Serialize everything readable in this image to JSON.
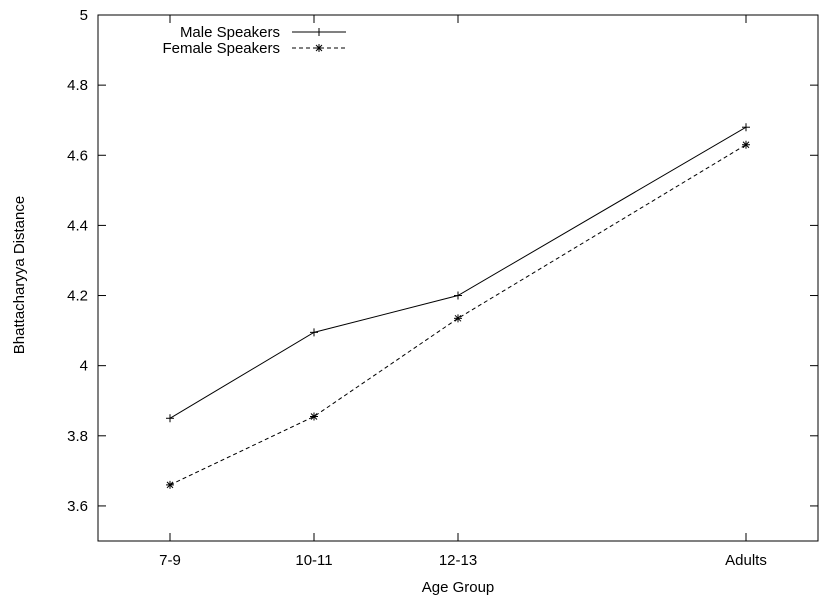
{
  "chart_data": {
    "type": "line",
    "title": "",
    "xlabel": "Age Group",
    "ylabel": "Bhattacharyya Distance",
    "categories": [
      "7-9",
      "10-11",
      "12-13",
      "Adults"
    ],
    "x_positions": [
      1,
      2,
      3,
      5
    ],
    "xlim": [
      0.5,
      5.5
    ],
    "ylim": [
      3.5,
      5.0
    ],
    "yticks": [
      3.6,
      3.8,
      4,
      4.2,
      4.4,
      4.6,
      4.8,
      5
    ],
    "ytick_labels": [
      "3.6",
      "3.8",
      "4",
      "4.2",
      "4.4",
      "4.6",
      "4.8",
      "5"
    ],
    "grid": false,
    "legend_position": "top-left",
    "series": [
      {
        "name": "Male Speakers",
        "values": [
          3.85,
          4.095,
          4.2,
          4.68
        ],
        "line_style": "solid",
        "marker": "plus",
        "color": "#000000"
      },
      {
        "name": "Female Speakers",
        "values": [
          3.66,
          3.855,
          4.135,
          4.63
        ],
        "line_style": "dashed",
        "marker": "asterisk",
        "color": "#000000"
      }
    ]
  }
}
